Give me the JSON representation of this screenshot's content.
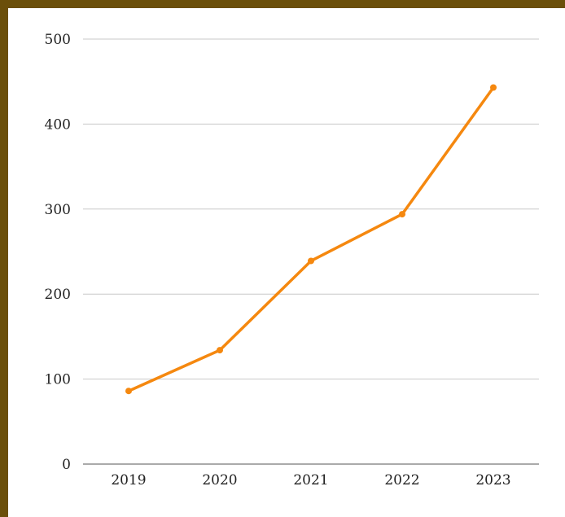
{
  "chart_data": {
    "type": "line",
    "title": "",
    "xlabel": "",
    "ylabel": "",
    "categories": [
      "2019",
      "2020",
      "2021",
      "2022",
      "2023"
    ],
    "series": [
      {
        "values": [
          86,
          134,
          239,
          294,
          443
        ]
      }
    ],
    "ylim": [
      0,
      500
    ],
    "yticks": [
      "0",
      "100",
      "200",
      "300",
      "400",
      "500"
    ],
    "grid": true,
    "legend": "none",
    "colors": {
      "line": "#f5880f",
      "grid": "#c8c8c8",
      "axis": "#555555",
      "frame": "#6b4f0a"
    }
  }
}
